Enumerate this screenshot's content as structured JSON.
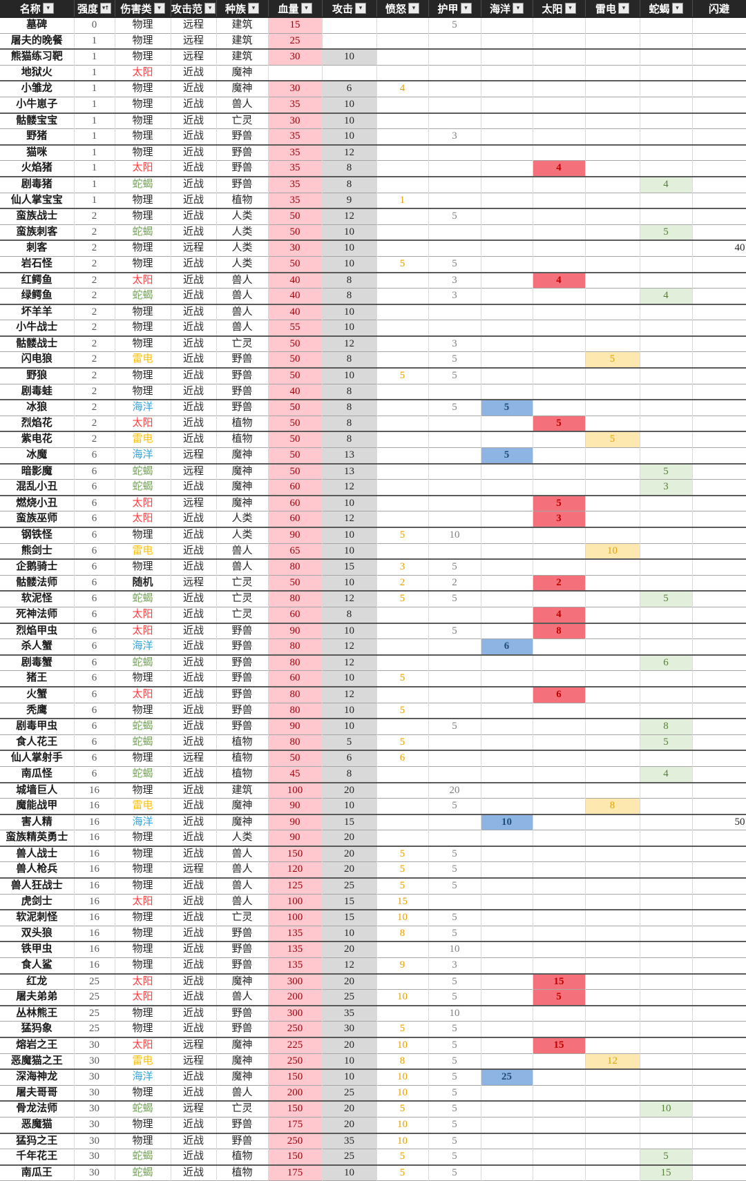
{
  "table": {
    "columns": [
      {
        "key": "name",
        "label": "名称",
        "filter": true
      },
      {
        "key": "strength",
        "label": "强度",
        "filter": true,
        "sorted": "asc"
      },
      {
        "key": "damage_type",
        "label": "伤害类",
        "filter": true
      },
      {
        "key": "attack_range",
        "label": "攻击范",
        "filter": true
      },
      {
        "key": "race",
        "label": "种族",
        "filter": true
      },
      {
        "key": "hp",
        "label": "血量",
        "filter": true
      },
      {
        "key": "attack",
        "label": "攻击",
        "filter": true
      },
      {
        "key": "rage",
        "label": "愤怒",
        "filter": true
      },
      {
        "key": "armor",
        "label": "护甲",
        "filter": true
      },
      {
        "key": "ocean",
        "label": "海洋",
        "filter": true
      },
      {
        "key": "sun",
        "label": "太阳",
        "filter": true
      },
      {
        "key": "thunder",
        "label": "雷电",
        "filter": true
      },
      {
        "key": "snake",
        "label": "蛇蝎",
        "filter": true
      },
      {
        "key": "dodge",
        "label": "闪避",
        "filter": false
      }
    ],
    "rows": [
      [
        "墓碑",
        "0",
        "物理",
        "远程",
        "建筑",
        "15",
        "",
        "",
        "5",
        "",
        "",
        "",
        "",
        ""
      ],
      [
        "屠夫的晚餐",
        "1",
        "物理",
        "远程",
        "建筑",
        "25",
        "",
        "",
        "",
        "",
        "",
        "",
        "",
        ""
      ],
      [
        "熊猫练习靶",
        "1",
        "物理",
        "远程",
        "建筑",
        "30",
        "10",
        "",
        "",
        "",
        "",
        "",
        "",
        ""
      ],
      [
        "地狱火",
        "1",
        "太阳",
        "近战",
        "魔神",
        "",
        "",
        "",
        "",
        "",
        "",
        "",
        "",
        ""
      ],
      [
        "小雏龙",
        "1",
        "物理",
        "近战",
        "魔神",
        "30",
        "6",
        "4",
        "",
        "",
        "",
        "",
        "",
        ""
      ],
      [
        "小牛崽子",
        "1",
        "物理",
        "近战",
        "兽人",
        "35",
        "10",
        "",
        "",
        "",
        "",
        "",
        "",
        ""
      ],
      [
        "骷髅宝宝",
        "1",
        "物理",
        "近战",
        "亡灵",
        "30",
        "10",
        "",
        "",
        "",
        "",
        "",
        "",
        ""
      ],
      [
        "野猪",
        "1",
        "物理",
        "近战",
        "野兽",
        "35",
        "10",
        "",
        "3",
        "",
        "",
        "",
        "",
        ""
      ],
      [
        "猫咪",
        "1",
        "物理",
        "近战",
        "野兽",
        "35",
        "12",
        "",
        "",
        "",
        "",
        "",
        "",
        ""
      ],
      [
        "火焰猪",
        "1",
        "太阳",
        "近战",
        "野兽",
        "35",
        "8",
        "",
        "",
        "",
        "4",
        "",
        "",
        ""
      ],
      [
        "剧毒猪",
        "1",
        "蛇蝎",
        "近战",
        "野兽",
        "35",
        "8",
        "",
        "",
        "",
        "",
        "",
        "4",
        ""
      ],
      [
        "仙人掌宝宝",
        "1",
        "物理",
        "近战",
        "植物",
        "35",
        "9",
        "1",
        "",
        "",
        "",
        "",
        "",
        ""
      ],
      [
        "蛮族战士",
        "2",
        "物理",
        "近战",
        "人类",
        "50",
        "12",
        "",
        "5",
        "",
        "",
        "",
        "",
        ""
      ],
      [
        "蛮族刺客",
        "2",
        "蛇蝎",
        "近战",
        "人类",
        "50",
        "10",
        "",
        "",
        "",
        "",
        "",
        "5",
        ""
      ],
      [
        "刺客",
        "2",
        "物理",
        "远程",
        "人类",
        "30",
        "10",
        "",
        "",
        "",
        "",
        "",
        "",
        "40"
      ],
      [
        "岩石怪",
        "2",
        "物理",
        "近战",
        "人类",
        "50",
        "10",
        "5",
        "5",
        "",
        "",
        "",
        "",
        ""
      ],
      [
        "红鳄鱼",
        "2",
        "太阳",
        "近战",
        "兽人",
        "40",
        "8",
        "",
        "3",
        "",
        "4",
        "",
        "",
        ""
      ],
      [
        "绿鳄鱼",
        "2",
        "蛇蝎",
        "近战",
        "兽人",
        "40",
        "8",
        "",
        "3",
        "",
        "",
        "",
        "4",
        ""
      ],
      [
        "坏羊羊",
        "2",
        "物理",
        "近战",
        "兽人",
        "40",
        "10",
        "",
        "",
        "",
        "",
        "",
        "",
        ""
      ],
      [
        "小牛战士",
        "2",
        "物理",
        "近战",
        "兽人",
        "55",
        "10",
        "",
        "",
        "",
        "",
        "",
        "",
        ""
      ],
      [
        "骷髅战士",
        "2",
        "物理",
        "近战",
        "亡灵",
        "50",
        "12",
        "",
        "3",
        "",
        "",
        "",
        "",
        ""
      ],
      [
        "闪电狼",
        "2",
        "雷电",
        "近战",
        "野兽",
        "50",
        "8",
        "",
        "5",
        "",
        "",
        "5",
        "",
        ""
      ],
      [
        "野狼",
        "2",
        "物理",
        "近战",
        "野兽",
        "50",
        "10",
        "5",
        "5",
        "",
        "",
        "",
        "",
        ""
      ],
      [
        "剧毒蛙",
        "2",
        "物理",
        "近战",
        "野兽",
        "40",
        "8",
        "",
        "",
        "",
        "",
        "",
        "",
        ""
      ],
      [
        "冰狼",
        "2",
        "海洋",
        "近战",
        "野兽",
        "50",
        "8",
        "",
        "5",
        "5",
        "",
        "",
        "",
        ""
      ],
      [
        "烈焰花",
        "2",
        "太阳",
        "近战",
        "植物",
        "50",
        "8",
        "",
        "",
        "",
        "5",
        "",
        "",
        ""
      ],
      [
        "紫电花",
        "2",
        "雷电",
        "近战",
        "植物",
        "50",
        "8",
        "",
        "",
        "",
        "",
        "5",
        "",
        ""
      ],
      [
        "冰魔",
        "6",
        "海洋",
        "远程",
        "魔神",
        "50",
        "13",
        "",
        "",
        "5",
        "",
        "",
        "",
        ""
      ],
      [
        "暗影魔",
        "6",
        "蛇蝎",
        "远程",
        "魔神",
        "50",
        "13",
        "",
        "",
        "",
        "",
        "",
        "5",
        ""
      ],
      [
        "混乱小丑",
        "6",
        "蛇蝎",
        "近战",
        "魔神",
        "60",
        "12",
        "",
        "",
        "",
        "",
        "",
        "3",
        ""
      ],
      [
        "燃烧小丑",
        "6",
        "太阳",
        "远程",
        "魔神",
        "60",
        "10",
        "",
        "",
        "",
        "5",
        "",
        "",
        ""
      ],
      [
        "蛮族巫师",
        "6",
        "太阳",
        "近战",
        "人类",
        "60",
        "12",
        "",
        "",
        "",
        "3",
        "",
        "",
        ""
      ],
      [
        "钢铁怪",
        "6",
        "物理",
        "近战",
        "人类",
        "90",
        "10",
        "5",
        "10",
        "",
        "",
        "",
        "",
        ""
      ],
      [
        "熊剑士",
        "6",
        "雷电",
        "近战",
        "兽人",
        "65",
        "10",
        "",
        "",
        "",
        "",
        "10",
        "",
        ""
      ],
      [
        "企鹅骑士",
        "6",
        "物理",
        "近战",
        "兽人",
        "80",
        "15",
        "3",
        "5",
        "",
        "",
        "",
        "",
        ""
      ],
      [
        "骷髅法师",
        "6",
        "随机",
        "远程",
        "亡灵",
        "50",
        "10",
        "2",
        "2",
        "",
        "2",
        "",
        "",
        ""
      ],
      [
        "软泥怪",
        "6",
        "蛇蝎",
        "近战",
        "亡灵",
        "80",
        "12",
        "5",
        "5",
        "",
        "",
        "",
        "5",
        ""
      ],
      [
        "死神法师",
        "6",
        "太阳",
        "近战",
        "亡灵",
        "60",
        "8",
        "",
        "",
        "",
        "4",
        "",
        "",
        ""
      ],
      [
        "烈焰甲虫",
        "6",
        "太阳",
        "近战",
        "野兽",
        "90",
        "10",
        "",
        "5",
        "",
        "8",
        "",
        "",
        ""
      ],
      [
        "杀人蟹",
        "6",
        "海洋",
        "近战",
        "野兽",
        "80",
        "12",
        "",
        "",
        "6",
        "",
        "",
        "",
        ""
      ],
      [
        "剧毒蟹",
        "6",
        "蛇蝎",
        "近战",
        "野兽",
        "80",
        "12",
        "",
        "",
        "",
        "",
        "",
        "6",
        ""
      ],
      [
        "猪王",
        "6",
        "物理",
        "近战",
        "野兽",
        "60",
        "10",
        "5",
        "",
        "",
        "",
        "",
        "",
        ""
      ],
      [
        "火蟹",
        "6",
        "太阳",
        "近战",
        "野兽",
        "80",
        "12",
        "",
        "",
        "",
        "6",
        "",
        "",
        ""
      ],
      [
        "秃鹰",
        "6",
        "物理",
        "近战",
        "野兽",
        "80",
        "10",
        "5",
        "",
        "",
        "",
        "",
        "",
        ""
      ],
      [
        "剧毒甲虫",
        "6",
        "蛇蝎",
        "近战",
        "野兽",
        "90",
        "10",
        "",
        "5",
        "",
        "",
        "",
        "8",
        ""
      ],
      [
        "食人花王",
        "6",
        "蛇蝎",
        "近战",
        "植物",
        "80",
        "5",
        "5",
        "",
        "",
        "",
        "",
        "5",
        ""
      ],
      [
        "仙人掌射手",
        "6",
        "物理",
        "远程",
        "植物",
        "50",
        "6",
        "6",
        "",
        "",
        "",
        "",
        "",
        ""
      ],
      [
        "南瓜怪",
        "6",
        "蛇蝎",
        "近战",
        "植物",
        "45",
        "8",
        "",
        "",
        "",
        "",
        "",
        "4",
        ""
      ],
      [
        "城墙巨人",
        "16",
        "物理",
        "近战",
        "建筑",
        "100",
        "20",
        "",
        "20",
        "",
        "",
        "",
        "",
        ""
      ],
      [
        "魔能战甲",
        "16",
        "雷电",
        "近战",
        "魔神",
        "90",
        "10",
        "",
        "5",
        "",
        "",
        "8",
        "",
        ""
      ],
      [
        "害人精",
        "16",
        "海洋",
        "近战",
        "魔神",
        "90",
        "15",
        "",
        "",
        "10",
        "",
        "",
        "",
        "50"
      ],
      [
        "蛮族精英勇士",
        "16",
        "物理",
        "近战",
        "人类",
        "90",
        "20",
        "",
        "",
        "",
        "",
        "",
        "",
        ""
      ],
      [
        "兽人战士",
        "16",
        "物理",
        "近战",
        "兽人",
        "150",
        "20",
        "5",
        "5",
        "",
        "",
        "",
        "",
        ""
      ],
      [
        "兽人枪兵",
        "16",
        "物理",
        "远程",
        "兽人",
        "120",
        "20",
        "5",
        "5",
        "",
        "",
        "",
        "",
        ""
      ],
      [
        "兽人狂战士",
        "16",
        "物理",
        "近战",
        "兽人",
        "125",
        "25",
        "5",
        "5",
        "",
        "",
        "",
        "",
        ""
      ],
      [
        "虎剑士",
        "16",
        "太阳",
        "近战",
        "兽人",
        "100",
        "15",
        "15",
        "",
        "",
        "",
        "",
        "",
        ""
      ],
      [
        "软泥刺怪",
        "16",
        "物理",
        "近战",
        "亡灵",
        "100",
        "15",
        "10",
        "5",
        "",
        "",
        "",
        "",
        ""
      ],
      [
        "双头狼",
        "16",
        "物理",
        "近战",
        "野兽",
        "135",
        "10",
        "8",
        "5",
        "",
        "",
        "",
        "",
        ""
      ],
      [
        "铁甲虫",
        "16",
        "物理",
        "近战",
        "野兽",
        "135",
        "20",
        "",
        "10",
        "",
        "",
        "",
        "",
        ""
      ],
      [
        "食人鲨",
        "16",
        "物理",
        "近战",
        "野兽",
        "135",
        "12",
        "9",
        "3",
        "",
        "",
        "",
        "",
        ""
      ],
      [
        "红龙",
        "25",
        "太阳",
        "近战",
        "魔神",
        "300",
        "20",
        "",
        "5",
        "",
        "15",
        "",
        "",
        ""
      ],
      [
        "屠夫弟弟",
        "25",
        "太阳",
        "近战",
        "兽人",
        "200",
        "25",
        "10",
        "5",
        "",
        "5",
        "",
        "",
        ""
      ],
      [
        "丛林熊王",
        "25",
        "物理",
        "近战",
        "野兽",
        "300",
        "35",
        "",
        "10",
        "",
        "",
        "",
        "",
        ""
      ],
      [
        "猛犸象",
        "25",
        "物理",
        "近战",
        "野兽",
        "250",
        "30",
        "5",
        "5",
        "",
        "",
        "",
        "",
        ""
      ],
      [
        "熔岩之王",
        "30",
        "太阳",
        "远程",
        "魔神",
        "225",
        "20",
        "10",
        "5",
        "",
        "15",
        "",
        "",
        ""
      ],
      [
        "恶魔猫之王",
        "30",
        "雷电",
        "远程",
        "魔神",
        "250",
        "10",
        "8",
        "5",
        "",
        "",
        "12",
        "",
        ""
      ],
      [
        "深海神龙",
        "30",
        "海洋",
        "近战",
        "魔神",
        "150",
        "10",
        "10",
        "5",
        "25",
        "",
        "",
        "",
        ""
      ],
      [
        "屠夫哥哥",
        "30",
        "物理",
        "近战",
        "兽人",
        "200",
        "25",
        "10",
        "5",
        "",
        "",
        "",
        "",
        ""
      ],
      [
        "骨龙法师",
        "30",
        "蛇蝎",
        "远程",
        "亡灵",
        "150",
        "20",
        "5",
        "5",
        "",
        "",
        "",
        "10",
        ""
      ],
      [
        "恶魔猫",
        "30",
        "物理",
        "近战",
        "野兽",
        "175",
        "20",
        "10",
        "5",
        "",
        "",
        "",
        "",
        ""
      ],
      [
        "猛犸之王",
        "30",
        "物理",
        "近战",
        "野兽",
        "250",
        "35",
        "10",
        "5",
        "",
        "",
        "",
        "",
        ""
      ],
      [
        "千年花王",
        "30",
        "蛇蝎",
        "近战",
        "植物",
        "150",
        "25",
        "5",
        "5",
        "",
        "",
        "",
        "5",
        ""
      ],
      [
        "南瓜王",
        "30",
        "蛇蝎",
        "近战",
        "植物",
        "175",
        "10",
        "5",
        "5",
        "",
        "",
        "",
        "15",
        ""
      ]
    ]
  },
  "icons": {
    "filter_dropdown": "▾",
    "sort_ascending": "↑"
  },
  "colors": {
    "header_bg": "#262626",
    "header_text": "#ffffff",
    "hp_bg": "#ffc7ce",
    "hp_text": "#9c0006",
    "attack_bg": "#d9d9d9",
    "attack_text": "#262626",
    "rage_text": "#e8a000",
    "armor_text": "#808080",
    "ocean_bg": "#8db4e2",
    "ocean_text": "#1f4e79",
    "sun_bg": "#f4707a",
    "sun_text": "#c00000",
    "thunder_bg": "#fde9b0",
    "thunder_text": "#dfa30c",
    "snake_bg": "#e2efda",
    "snake_text": "#548235",
    "damage_types": {
      "物理": {
        "color": "#262626",
        "bold": false
      },
      "太阳": {
        "color": "#ff3b3b",
        "bold": false
      },
      "蛇蝎": {
        "color": "#6fa84f",
        "bold": false
      },
      "雷电": {
        "color": "#ffc000",
        "bold": false
      },
      "海洋": {
        "color": "#35a3dc",
        "bold": false
      },
      "随机": {
        "color": "#262626",
        "bold": true
      }
    }
  }
}
